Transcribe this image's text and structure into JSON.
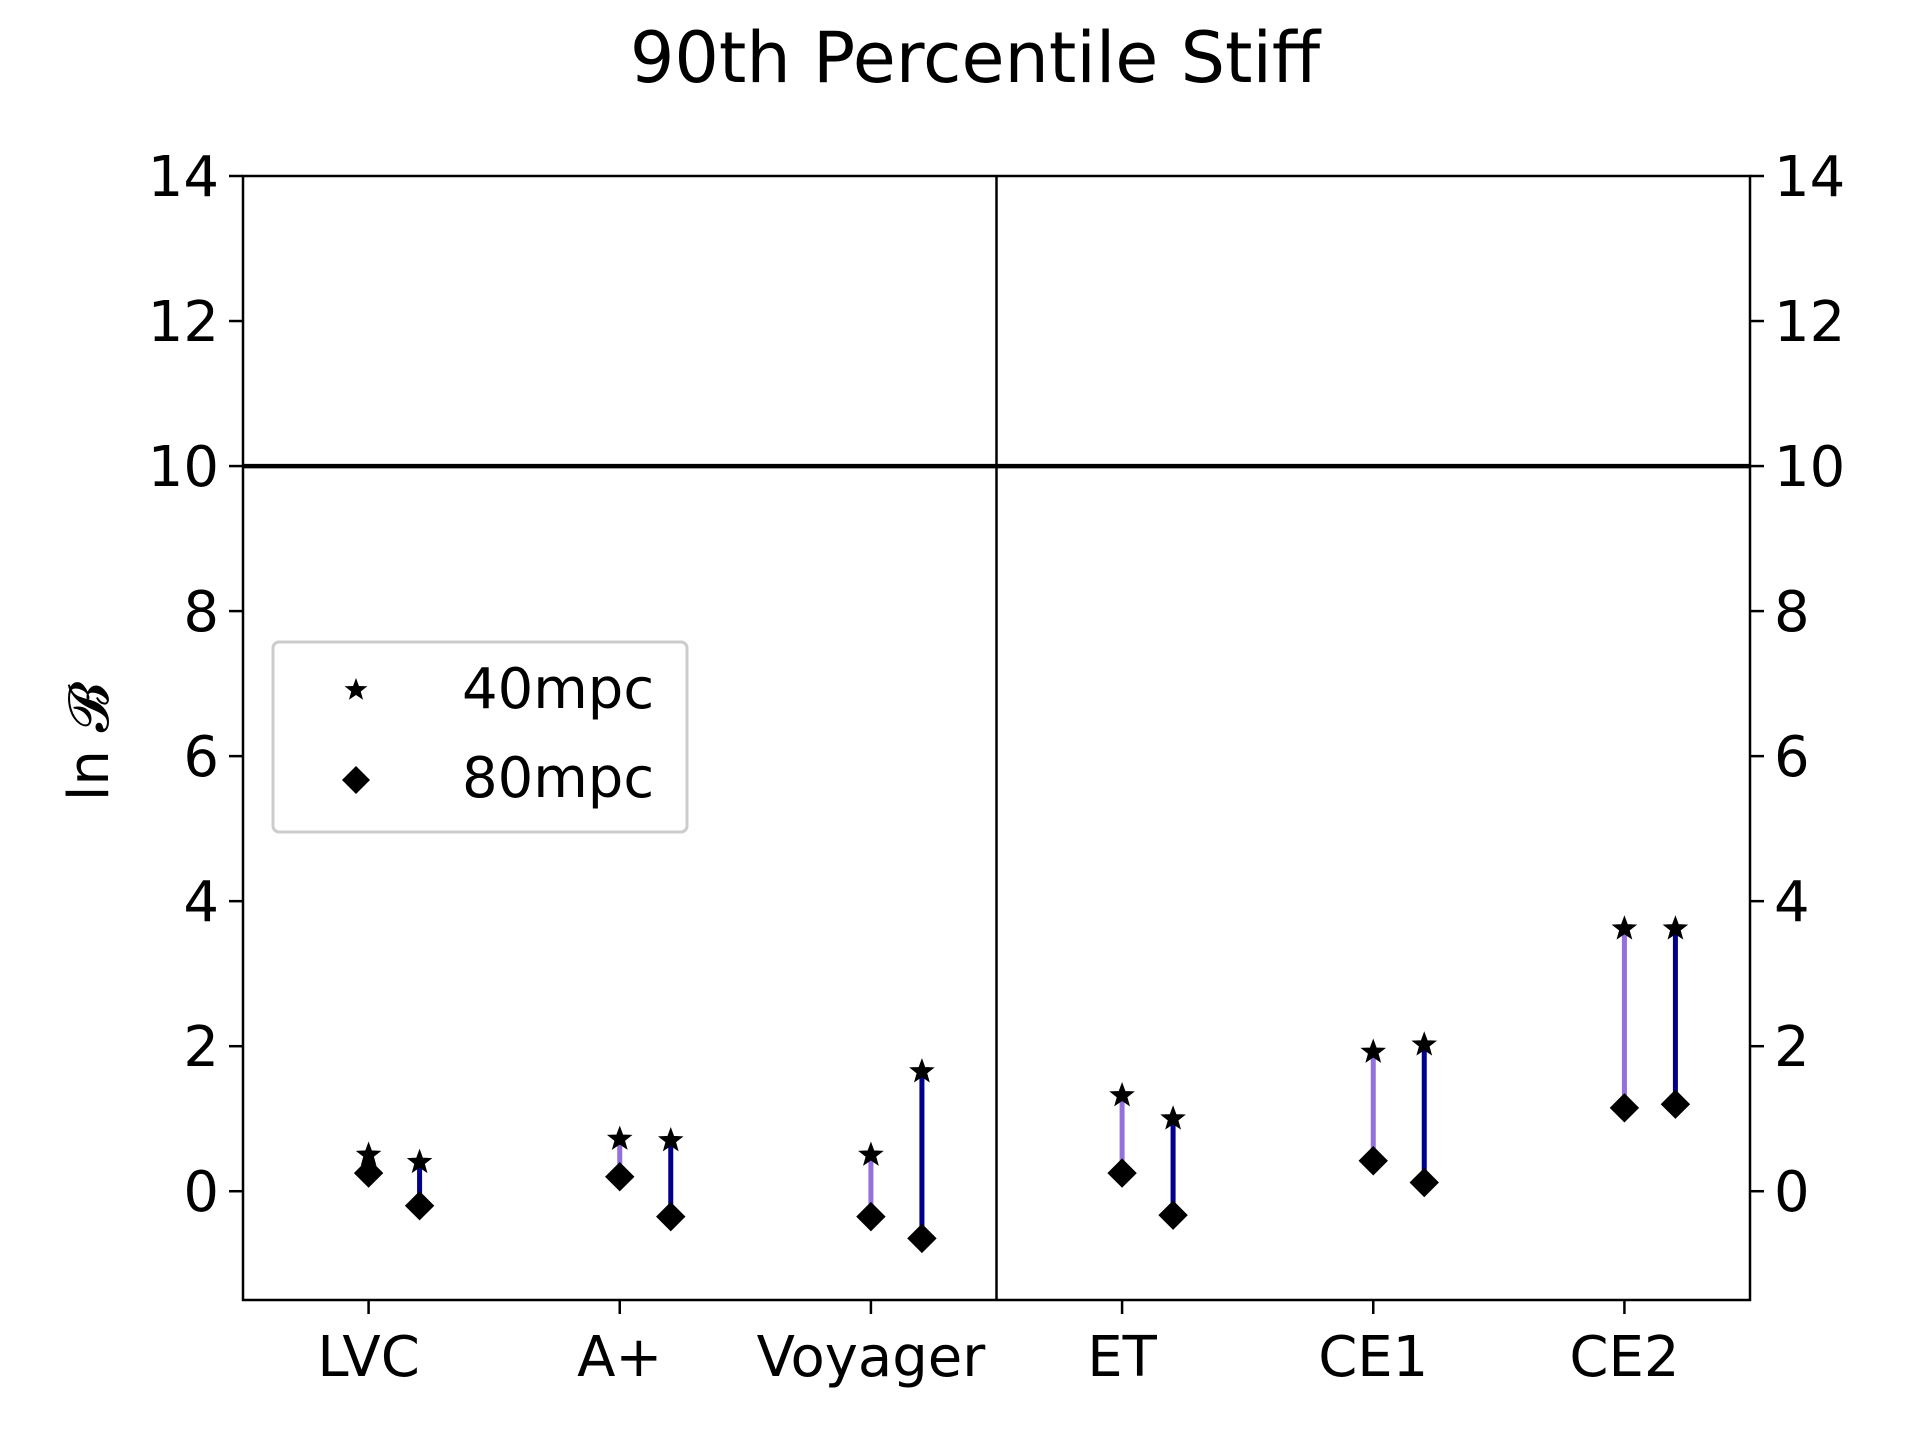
{
  "chart_data": {
    "type": "scatter",
    "title": "90th Percentile Stiff",
    "ylabel": "ln 𝓑",
    "ylim": [
      -1.5,
      14
    ],
    "yticks": [
      0,
      2,
      4,
      6,
      8,
      10,
      12,
      14
    ],
    "threshold_line": 10,
    "right_axis_ticks": true,
    "categories": [
      "LVC",
      "A+",
      "Voyager",
      "ET",
      "CE1",
      "CE2"
    ],
    "divider_between": [
      "Voyager",
      "ET"
    ],
    "legend": {
      "placement": "center-left",
      "entries": [
        {
          "label": "40mpc",
          "marker": "star"
        },
        {
          "label": "80mpc",
          "marker": "diamond"
        }
      ]
    },
    "series": [
      {
        "color": "#9370db",
        "values_40mpc": [
          0.5,
          0.72,
          0.5,
          1.32,
          1.92,
          3.62
        ],
        "values_80mpc": [
          0.25,
          0.2,
          -0.35,
          0.25,
          0.42,
          1.15
        ]
      },
      {
        "color": "#00008b",
        "values_40mpc": [
          0.4,
          0.7,
          1.65,
          1.0,
          2.02,
          3.62
        ],
        "values_80mpc": [
          -0.2,
          -0.35,
          -0.65,
          -0.33,
          0.12,
          1.2
        ]
      }
    ]
  }
}
